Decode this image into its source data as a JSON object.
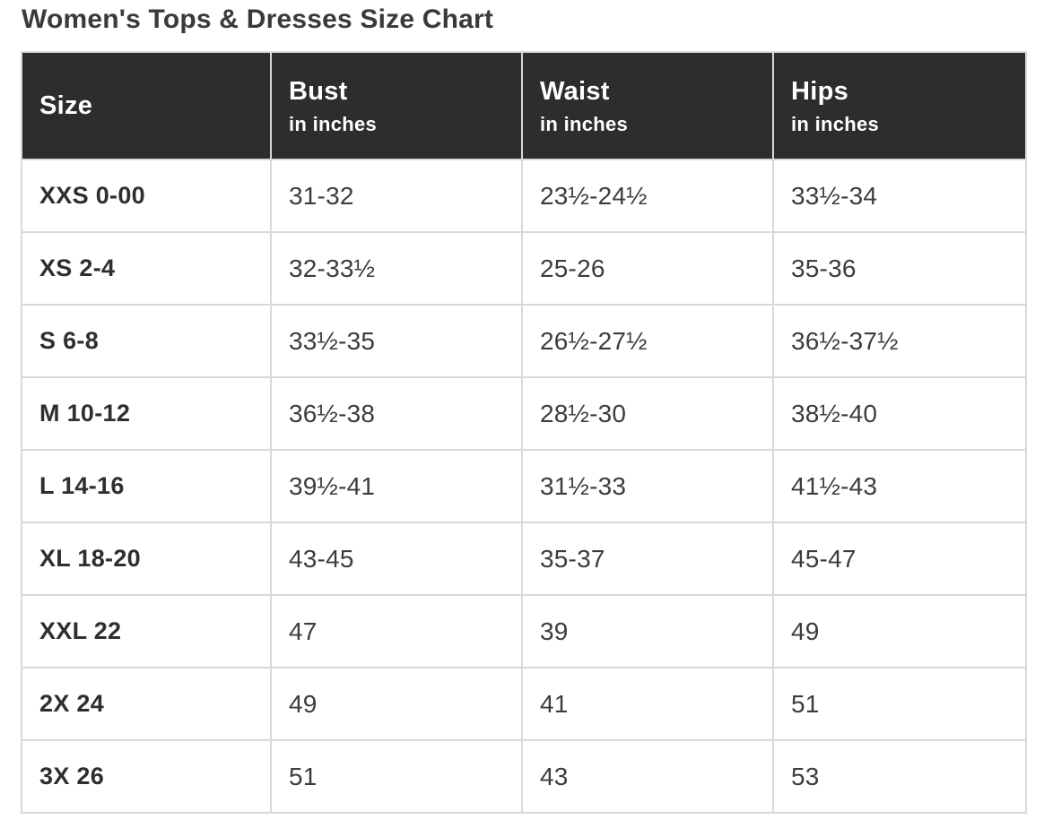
{
  "page_title": "Women's Tops & Dresses Size Chart",
  "table": {
    "columns": [
      {
        "label": "Size",
        "sublabel": ""
      },
      {
        "label": "Bust",
        "sublabel": "in inches"
      },
      {
        "label": "Waist",
        "sublabel": "in inches"
      },
      {
        "label": "Hips",
        "sublabel": "in inches"
      }
    ],
    "rows": [
      {
        "size": "XXS 0-00",
        "bust": "31-32",
        "waist": "23½-24½",
        "hips": "33½-34"
      },
      {
        "size": "XS 2-4",
        "bust": "32-33½",
        "waist": "25-26",
        "hips": "35-36"
      },
      {
        "size": "S 6-8",
        "bust": "33½-35",
        "waist": "26½-27½",
        "hips": "36½-37½"
      },
      {
        "size": "M 10-12",
        "bust": "36½-38",
        "waist": "28½-30",
        "hips": "38½-40"
      },
      {
        "size": "L 14-16",
        "bust": "39½-41",
        "waist": "31½-33",
        "hips": "41½-43"
      },
      {
        "size": "XL 18-20",
        "bust": "43-45",
        "waist": "35-37",
        "hips": "45-47"
      },
      {
        "size": "XXL 22",
        "bust": "47",
        "waist": "39",
        "hips": "49"
      },
      {
        "size": "2X 24",
        "bust": "49",
        "waist": "41",
        "hips": "51"
      },
      {
        "size": "3X 26",
        "bust": "51",
        "waist": "43",
        "hips": "53"
      }
    ]
  },
  "colors": {
    "header_bg": "#2e2d2e",
    "header_text": "#ffffff",
    "border": "#d9d9d9",
    "title_text": "#3a3a3a",
    "size_text": "#2f2f2f",
    "value_text": "#3c3c3c"
  }
}
